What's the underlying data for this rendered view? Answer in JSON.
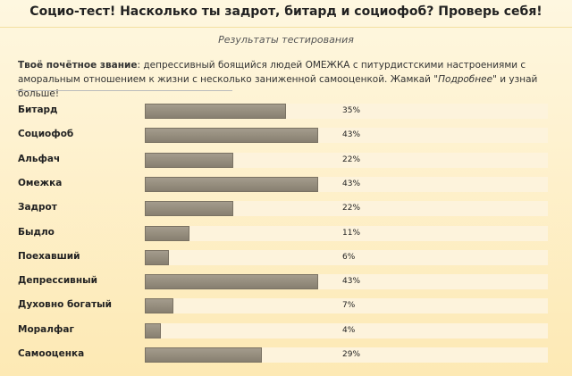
{
  "header": {
    "title": "Социо-тест! Насколько ты задрот, битард и социофоб? Проверь себя!",
    "subtitle": "Результаты тестирования"
  },
  "description": {
    "label": "Твоё почётное звание",
    "text": ": депрессивный боящийся людей ОМЕЖКА с питурдистскими настроениями с аморальным отношением к жизни с несколько заниженной самооценкой. Жамкай \"",
    "link": "Подробнее",
    "suffix": "\" и узнай больше!"
  },
  "chart_data": {
    "type": "bar",
    "orientation": "horizontal",
    "color": "#8e8677",
    "xlim": [
      0,
      100
    ],
    "categories": [
      "Битард",
      "Социофоб",
      "Альфач",
      "Омежка",
      "Задрот",
      "Быдло",
      "Поехавший",
      "Депрессивный",
      "Духовно богатый",
      "Моралфаг",
      "Самооценка"
    ],
    "values": [
      35,
      43,
      22,
      43,
      22,
      11,
      6,
      43,
      7,
      4,
      29
    ],
    "value_labels": [
      "35%",
      "43%",
      "22%",
      "43%",
      "22%",
      "11%",
      "6%",
      "43%",
      "7%",
      "4%",
      "29%"
    ]
  }
}
